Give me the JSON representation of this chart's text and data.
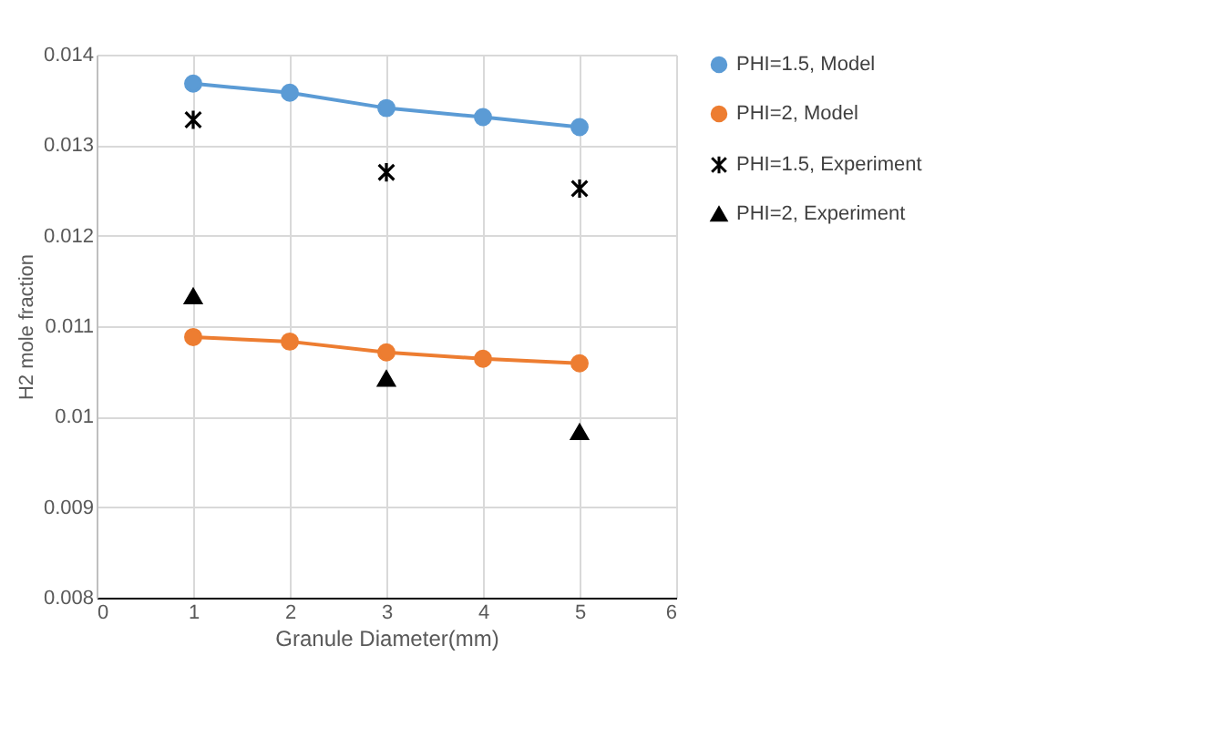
{
  "chart_data": {
    "type": "line",
    "xlabel": "Granule Diameter(mm)",
    "ylabel": "H2 mole fraction",
    "x": [
      1,
      2,
      3,
      4,
      5
    ],
    "series": [
      {
        "name": "PHI=1.5, Model",
        "marker": "circle",
        "color": "#5b9bd5",
        "values": [
          0.01368,
          0.01358,
          0.01341,
          0.01331,
          0.0132
        ]
      },
      {
        "name": "PHI=2, Model",
        "marker": "circle",
        "color": "#ed7d31",
        "values": [
          0.01088,
          0.01083,
          0.01071,
          0.01064,
          0.01059
        ]
      },
      {
        "name": "PHI=1.5, Experiment",
        "type": "scatter",
        "marker": "cross",
        "color": "#000000",
        "x": [
          1,
          3,
          5
        ],
        "values": [
          0.01328,
          0.0127,
          0.01252
        ]
      },
      {
        "name": "PHI=2, Experiment",
        "type": "scatter",
        "marker": "triangle",
        "color": "#000000",
        "x": [
          1,
          3,
          5
        ],
        "values": [
          0.01133,
          0.01042,
          0.00983
        ]
      }
    ],
    "xlim": [
      0,
      6
    ],
    "xticks": [
      0,
      1,
      2,
      3,
      4,
      5,
      6
    ],
    "ylim": [
      0.008,
      0.014
    ],
    "yticks": [
      0.008,
      0.009,
      0.01,
      0.011,
      0.012,
      0.013,
      0.014
    ],
    "grid": true,
    "legend": "right"
  }
}
